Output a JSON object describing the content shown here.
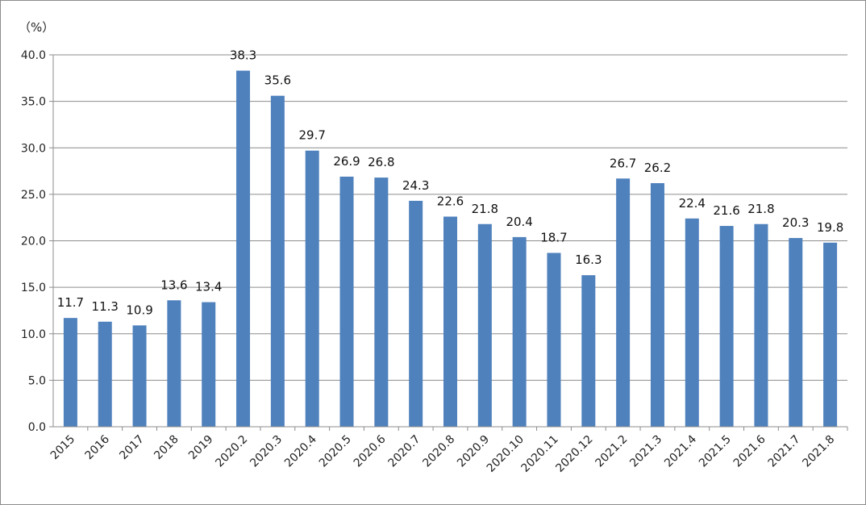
{
  "chart_data": {
    "type": "bar",
    "unit_label": "（%）",
    "categories": [
      "2015",
      "2016",
      "2017",
      "2018",
      "2019",
      "2020.2",
      "2020.3",
      "2020.4",
      "2020.5",
      "2020.6",
      "2020.7",
      "2020.8",
      "2020.9",
      "2020.10",
      "2020.11",
      "2020.12",
      "2021.2",
      "2021.3",
      "2021.4",
      "2021.5",
      "2021.6",
      "2021.7",
      "2021.8"
    ],
    "values": [
      11.7,
      11.3,
      10.9,
      13.6,
      13.4,
      38.3,
      35.6,
      29.7,
      26.9,
      26.8,
      24.3,
      22.6,
      21.8,
      20.4,
      18.7,
      16.3,
      26.7,
      26.2,
      22.4,
      21.6,
      21.8,
      20.3,
      19.8
    ],
    "ylim": [
      0,
      40
    ],
    "yticks": [
      "0.0",
      "5.0",
      "10.0",
      "15.0",
      "20.0",
      "25.0",
      "30.0",
      "35.0",
      "40.0"
    ],
    "grid": true,
    "bar_color": "#4F81BD",
    "grid_color": "#8c8c8c"
  }
}
